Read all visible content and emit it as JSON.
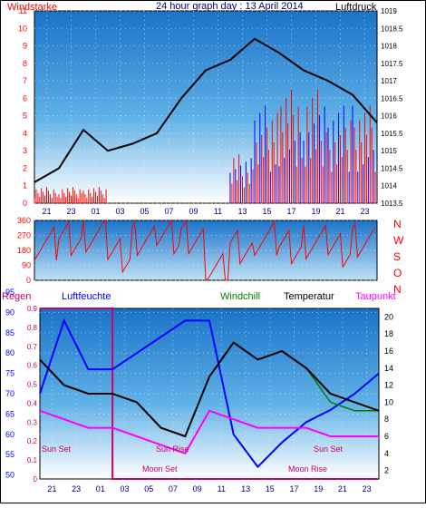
{
  "title": "24 hour graph day : 13 April 2014",
  "labels": {
    "wind": "Windstarke",
    "pressure": "Luftdruck",
    "regen": "Regen",
    "humidity": "Luftfeuchte",
    "windchill": "Windchill",
    "temperature": "Temperatur",
    "dewpoint": "Taupunkt"
  },
  "x_ticks": [
    "21",
    "23",
    "01",
    "03",
    "05",
    "07",
    "09",
    "11",
    "13",
    "15",
    "17",
    "19",
    "21",
    "23"
  ],
  "bottom_x_ticks": [
    "21",
    "23",
    "01",
    "03",
    "05",
    "07",
    "09",
    "11",
    "13",
    "15",
    "17",
    "19",
    "21",
    "23"
  ],
  "bottom_x_prefix": [
    "Sun Set",
    "Sun Set"
  ],
  "wind_ticks": [
    "0",
    "1",
    "2",
    "3",
    "4",
    "5",
    "6",
    "7",
    "8",
    "9",
    "10",
    "11"
  ],
  "pressure_ticks": [
    "1013.5",
    "1014",
    "1014.5",
    "1015",
    "1015.5",
    "1016",
    "1016.5",
    "1017",
    "1017.5",
    "1018",
    "1018.5",
    "1019"
  ],
  "direction_ticks": [
    "0",
    "90",
    "180",
    "270",
    "360"
  ],
  "direction_letters": [
    "N",
    "W",
    "S",
    "O",
    "N"
  ],
  "humidity_ticks": [
    "50",
    "55",
    "60",
    "65",
    "70",
    "75",
    "80",
    "85",
    "90",
    "95"
  ],
  "rain_ticks": [
    "0",
    "0.1",
    "0.2",
    "0.3",
    "0.4",
    "0.5",
    "0.6",
    "0.7",
    "0.8",
    "0.9"
  ],
  "temp_ticks": [
    "2",
    "4",
    "6",
    "8",
    "10",
    "12",
    "14",
    "16",
    "18",
    "20"
  ],
  "annotations": {
    "sun_set_1": "Sun Set",
    "sun_rise": "Sun Rise",
    "moon_set": "Moon Set",
    "sun_set_2": "Sun Set",
    "moon_rise": "Moon Rise"
  },
  "colors": {
    "wind": "#ff0000",
    "wind_alt": "#0000ff",
    "pressure": "#000000",
    "humidity": "#0000ff",
    "temperature": "#000000",
    "windchill": "#008000",
    "dewpoint": "#ff00ff",
    "rain_box": "#cc0066",
    "label_red": "#ff0000"
  },
  "chart_data": [
    {
      "type": "line",
      "name": "wind and pressure",
      "xlabel": "",
      "y_left_range": [
        0,
        11
      ],
      "y_right_range": [
        1013.5,
        1019
      ],
      "x_hours": [
        20,
        22,
        24,
        26,
        28,
        30,
        32,
        34,
        36,
        38,
        40,
        42,
        44,
        46,
        48
      ],
      "pressure": [
        1014.1,
        1014.5,
        1015.6,
        1015.0,
        1015.2,
        1015.5,
        1016.5,
        1017.3,
        1017.6,
        1018.2,
        1017.8,
        1017.3,
        1017.0,
        1016.6,
        1015.8
      ],
      "wind": [
        1,
        1,
        1,
        0,
        0,
        0,
        0,
        0,
        3,
        6,
        7,
        7,
        6,
        6,
        2
      ]
    },
    {
      "type": "line",
      "name": "wind direction",
      "y_range": [
        0,
        360
      ],
      "x_hours": [
        20,
        22,
        24,
        26,
        28,
        30,
        32,
        34,
        36,
        38,
        40,
        42,
        44,
        46,
        48
      ],
      "direction": [
        220,
        250,
        270,
        150,
        250,
        260,
        260,
        60,
        200,
        250,
        200,
        230,
        180,
        240,
        220
      ]
    },
    {
      "type": "line",
      "name": "temperature and humidity",
      "y_left_range": [
        49,
        91
      ],
      "y_right_range": [
        1,
        21
      ],
      "x_hours": [
        20,
        22,
        24,
        26,
        28,
        30,
        32,
        34,
        36,
        38,
        40,
        42,
        44,
        46,
        48
      ],
      "humidity": [
        70,
        88,
        76,
        76,
        80,
        84,
        88,
        88,
        60,
        52,
        58,
        63,
        66,
        70,
        75
      ],
      "temperature": [
        15,
        12,
        11,
        11,
        10,
        7,
        6,
        13,
        17,
        15,
        16,
        14,
        11,
        10,
        9
      ],
      "dewpoint": [
        9,
        8,
        7,
        7,
        6,
        5,
        4,
        9,
        8,
        7,
        7,
        7,
        6,
        6,
        6
      ],
      "windchill": [
        15,
        12,
        11,
        11,
        10,
        7,
        6,
        13,
        17,
        15,
        16,
        14,
        10,
        9,
        9
      ],
      "rain": [
        0.9,
        0.9,
        0.9,
        0,
        0,
        0,
        0,
        0,
        0,
        0,
        0,
        0,
        0,
        0,
        0
      ]
    }
  ]
}
